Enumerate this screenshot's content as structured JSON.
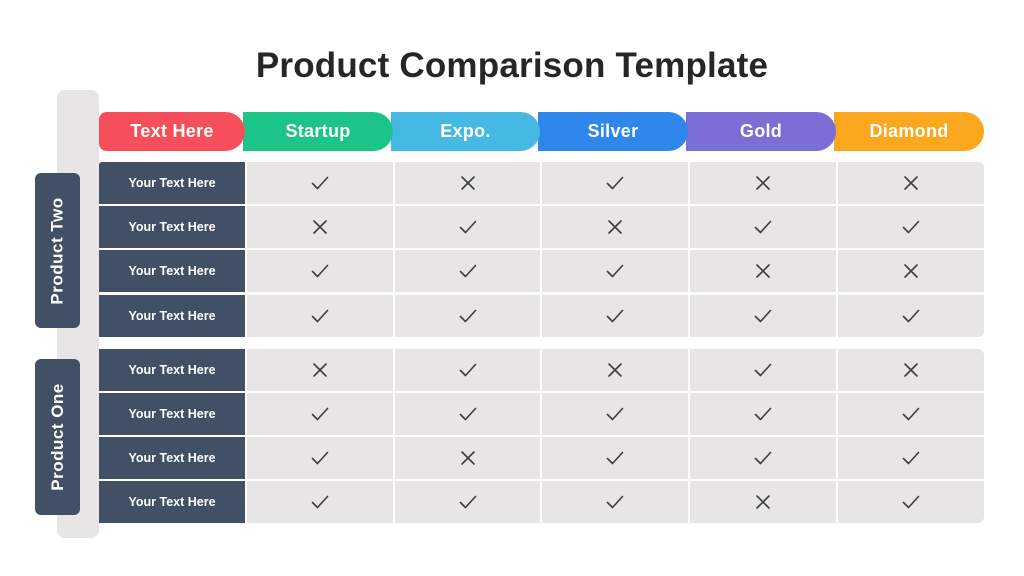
{
  "title": "Product Comparison Template",
  "header": {
    "tabs": [
      {
        "label": "Text Here",
        "color": "#f64f5c"
      },
      {
        "label": "Startup",
        "color": "#1dc487"
      },
      {
        "label": "Expo.",
        "color": "#45b9e4"
      },
      {
        "label": "Silver",
        "color": "#2f86eb"
      },
      {
        "label": "Gold",
        "color": "#7b6ed4"
      },
      {
        "label": "Diamond",
        "color": "#fba81f"
      }
    ]
  },
  "groups": [
    {
      "name": "Product Two",
      "rows": [
        {
          "label": "Your Text Here",
          "values": [
            "check",
            "cross",
            "check",
            "cross",
            "cross"
          ]
        },
        {
          "label": "Your Text Here",
          "values": [
            "cross",
            "check",
            "cross",
            "check",
            "check"
          ]
        },
        {
          "label": "Your Text Here",
          "values": [
            "check",
            "check",
            "check",
            "cross",
            "cross"
          ]
        },
        {
          "label": "Your Text Here",
          "values": [
            "check",
            "check",
            "check",
            "check",
            "check"
          ]
        }
      ]
    },
    {
      "name": "Product One",
      "rows": [
        {
          "label": "Your Text Here",
          "values": [
            "cross",
            "check",
            "cross",
            "check",
            "cross"
          ]
        },
        {
          "label": "Your Text Here",
          "values": [
            "check",
            "check",
            "check",
            "check",
            "check"
          ]
        },
        {
          "label": "Your Text Here",
          "values": [
            "check",
            "cross",
            "check",
            "check",
            "check"
          ]
        },
        {
          "label": "Your Text Here",
          "values": [
            "check",
            "check",
            "check",
            "cross",
            "check"
          ]
        }
      ]
    }
  ],
  "icons": {
    "check": "check-icon",
    "cross": "cross-icon"
  },
  "colors": {
    "label_bg": "#425066",
    "cell_bg": "#e7e5e6",
    "mark": "#3d3d3d"
  }
}
